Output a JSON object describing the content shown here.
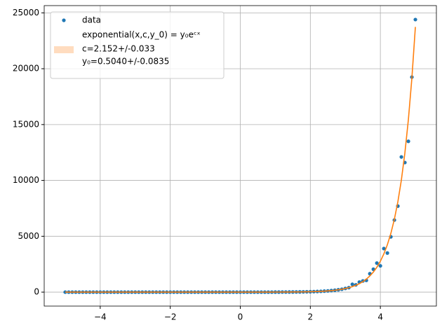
{
  "chart_data": {
    "type": "scatter",
    "x": [
      -5.0,
      -4.9,
      -4.8,
      -4.7,
      -4.6,
      -4.5,
      -4.4,
      -4.3,
      -4.2,
      -4.1,
      -4.0,
      -3.9,
      -3.8,
      -3.7,
      -3.6,
      -3.5,
      -3.4,
      -3.3,
      -3.2,
      -3.1,
      -3.0,
      -2.9,
      -2.8,
      -2.7,
      -2.6,
      -2.5,
      -2.4,
      -2.3,
      -2.2,
      -2.1,
      -2.0,
      -1.9,
      -1.8,
      -1.7,
      -1.6,
      -1.5,
      -1.4,
      -1.3,
      -1.2,
      -1.1,
      -1.0,
      -0.9,
      -0.8,
      -0.7,
      -0.6,
      -0.5,
      -0.4,
      -0.3,
      -0.2,
      -0.1,
      0.0,
      0.1,
      0.2,
      0.3,
      0.4,
      0.5,
      0.6,
      0.7,
      0.8,
      0.9,
      1.0,
      1.1,
      1.2,
      1.3,
      1.4,
      1.5,
      1.6,
      1.7,
      1.8,
      1.9,
      2.0,
      2.1,
      2.2,
      2.3,
      2.4,
      2.5,
      2.6,
      2.7,
      2.8,
      2.9,
      3.0,
      3.1,
      3.2,
      3.3,
      3.4,
      3.5,
      3.6,
      3.7,
      3.8,
      3.9,
      4.0,
      4.1,
      4.2,
      4.3,
      4.4,
      4.5,
      4.6,
      4.7,
      4.8,
      4.9,
      5.0
    ],
    "series": [
      {
        "name": "data",
        "color": "#1f77b4",
        "style": "points",
        "values": [
          0,
          0,
          0,
          0,
          0,
          0,
          0,
          0,
          0,
          0,
          0,
          0,
          0,
          0,
          0,
          0,
          0,
          0,
          0,
          0,
          0,
          0,
          0,
          0,
          0,
          0,
          0,
          0,
          0,
          0,
          0,
          0,
          0,
          0,
          0,
          0,
          0,
          0,
          0,
          0,
          0,
          0,
          0,
          0,
          0,
          0,
          0,
          0,
          0,
          0,
          0,
          0,
          0,
          0,
          0,
          0,
          0,
          0,
          0,
          0,
          4,
          5,
          7,
          8,
          10,
          13,
          16,
          20,
          24,
          30,
          37,
          46,
          57,
          71,
          88,
          109,
          136,
          168,
          209,
          259,
          330,
          400,
          700,
          650,
          900,
          1000,
          1050,
          1650,
          2050,
          2600,
          2350,
          3900,
          3500,
          4950,
          6450,
          7700,
          12100,
          11600,
          13500,
          19250,
          24400
        ]
      },
      {
        "name": "exponential(x,c,y_0) = y₀eᶜˣ",
        "color": "#ff7f0e",
        "style": "line",
        "values": [
          0,
          0,
          0,
          0,
          0,
          0,
          0,
          0,
          0,
          0,
          0,
          0,
          0,
          0,
          0,
          0,
          0,
          0,
          0,
          0,
          0,
          0,
          0,
          0,
          0,
          0,
          0,
          0,
          0,
          0,
          0,
          0,
          0,
          0,
          0,
          0,
          0,
          0,
          0,
          0,
          0,
          0,
          0,
          0,
          0,
          0,
          0,
          0,
          0,
          0,
          0,
          0,
          0,
          0,
          0,
          0,
          0,
          0,
          0,
          0,
          4,
          5,
          7,
          8,
          10,
          13,
          16,
          20,
          24,
          30,
          37,
          46,
          57,
          71,
          88,
          109,
          136,
          168,
          209,
          259,
          321,
          398,
          493,
          612,
          758,
          941,
          1166,
          1447,
          1795,
          2225,
          2759,
          3422,
          4244,
          5262,
          6527,
          8094,
          10040,
          12450,
          15440,
          19150,
          23740
        ]
      }
    ],
    "fit_band": {
      "color": "#ffdcbf",
      "labels": [
        "c=2.152+/-0.033",
        "y₀=0.5040+/-0.0835"
      ]
    },
    "xlim": [
      -5.6,
      5.6
    ],
    "ylim": [
      -1250,
      25650
    ],
    "xticks": [
      {
        "value": -4,
        "label": "−4"
      },
      {
        "value": -2,
        "label": "−2"
      },
      0,
      2,
      4
    ],
    "yticks": [
      0,
      5000,
      10000,
      15000,
      20000,
      25000
    ],
    "grid": true,
    "legend": "upper left"
  }
}
